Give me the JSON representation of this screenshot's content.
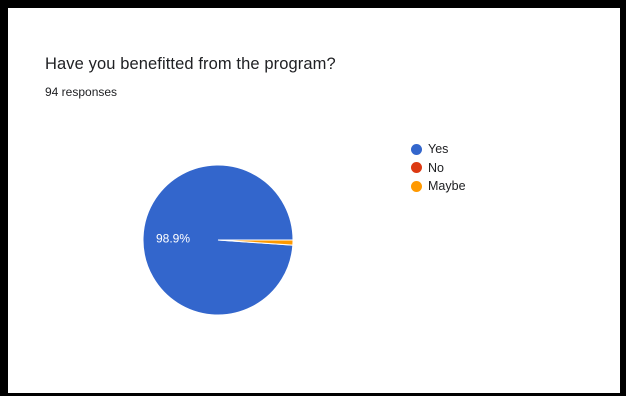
{
  "colors": {
    "yes": "#3366cc",
    "no": "#dc3912",
    "maybe": "#ff9900"
  },
  "chart_data": {
    "type": "pie",
    "title": "Have you benefitted from the program?",
    "subtitle": "94 responses",
    "categories": [
      "Yes",
      "No",
      "Maybe"
    ],
    "values": [
      98.9,
      0,
      1.1
    ],
    "data_labels": [
      "98.9%",
      "",
      ""
    ],
    "legend_position": "right"
  }
}
